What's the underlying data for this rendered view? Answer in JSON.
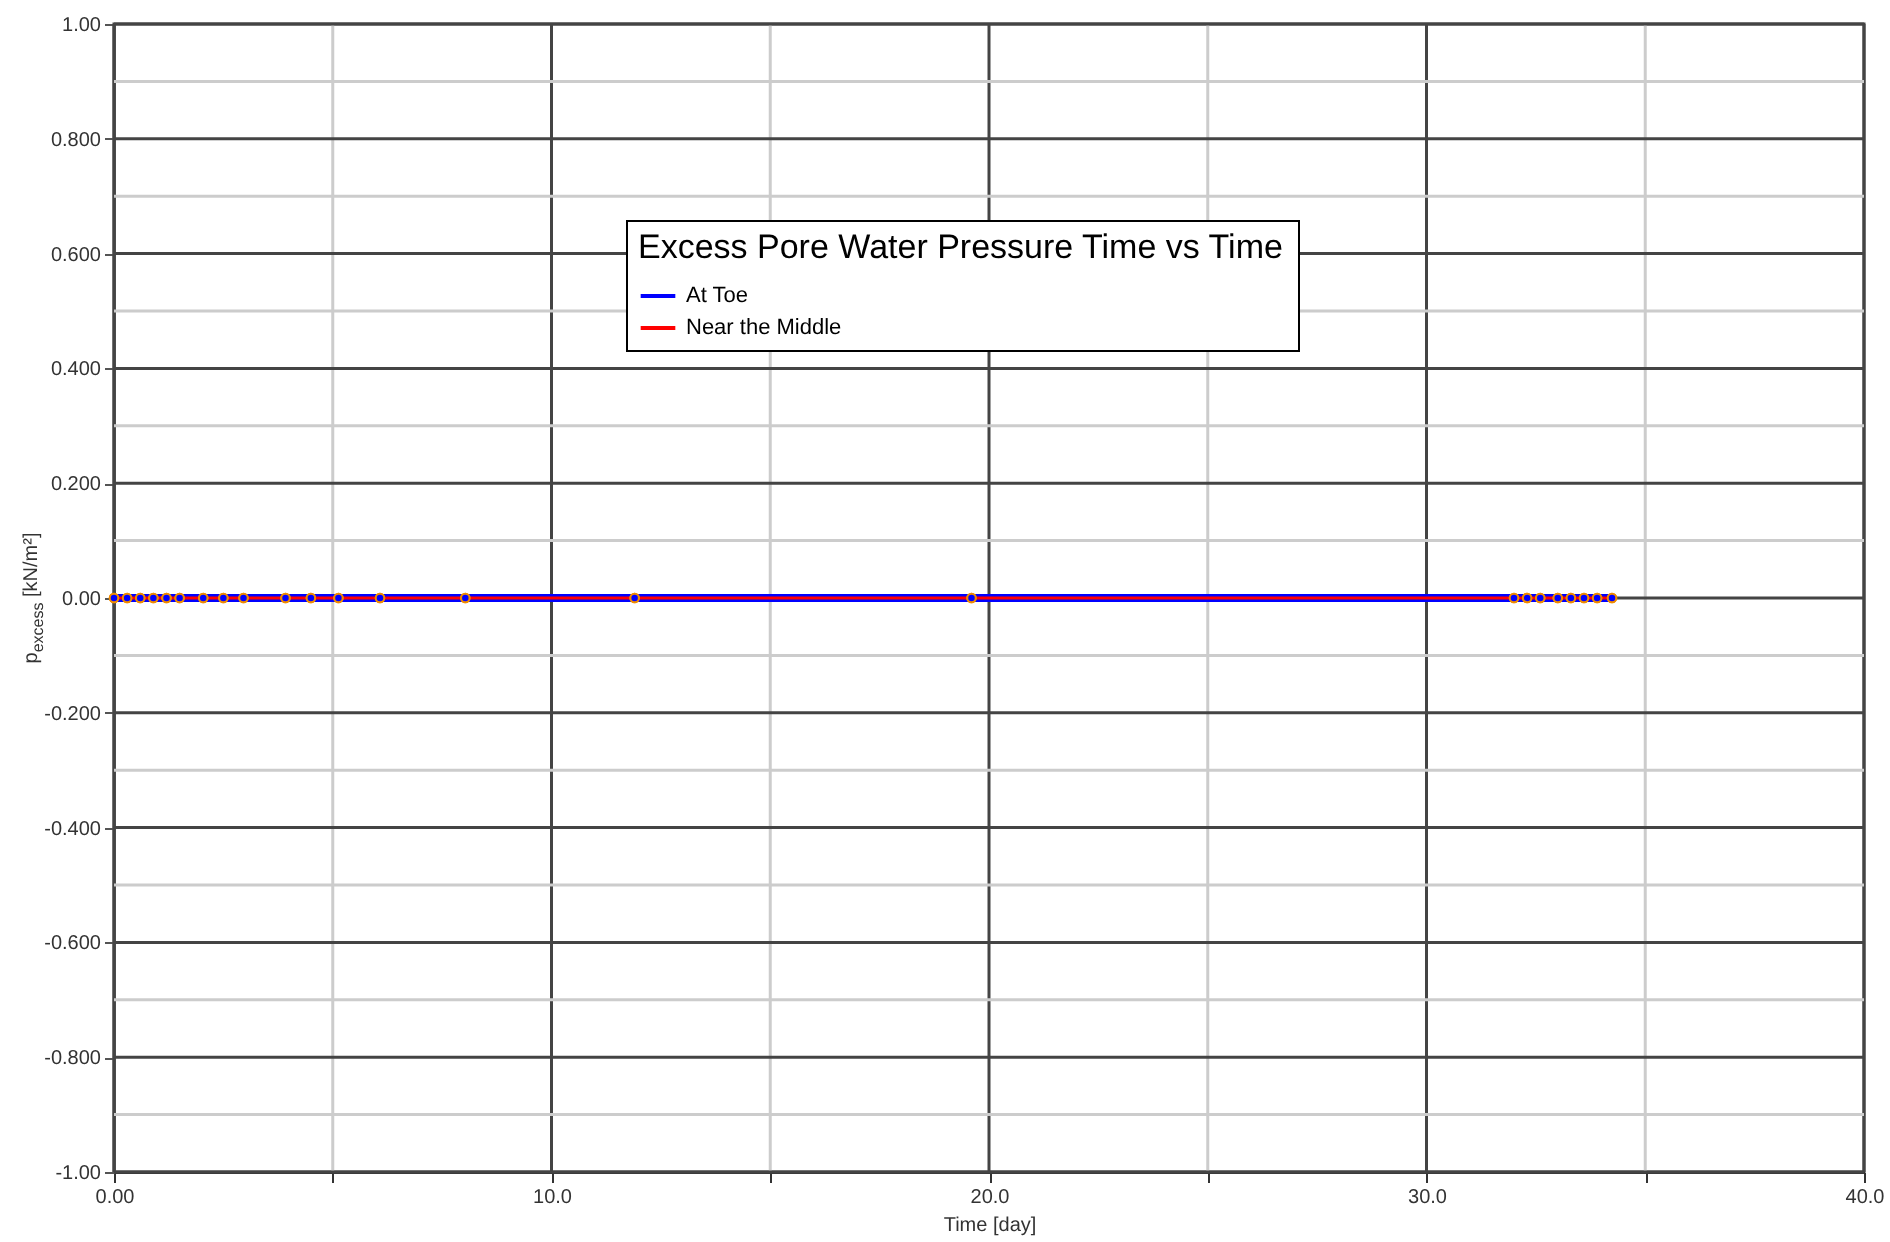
{
  "chart_data": {
    "type": "line",
    "legend_title": "Excess Pore Water Pressure Time vs Time",
    "xlabel": "Time [day]",
    "ylabel": "p$_{excess}$ [kN/m²]",
    "x": [
      0,
      0.3,
      0.6,
      0.9,
      1.2,
      1.5,
      2.04,
      2.5,
      2.96,
      3.92,
      4.5,
      5.13,
      6.08,
      8.03,
      11.9,
      19.6,
      32.0,
      32.3,
      32.6,
      33.0,
      33.3,
      33.6,
      33.9,
      34.24
    ],
    "series": [
      {
        "name": "At Toe",
        "color": "#0000ff",
        "values": [
          0,
          0,
          0,
          0,
          0,
          0,
          0,
          0,
          0,
          0,
          0,
          0,
          0,
          0,
          0,
          0,
          0,
          0,
          0,
          0,
          0,
          0,
          0,
          0
        ]
      },
      {
        "name": "Near the Middle",
        "color": "#ff0000",
        "values": [
          0,
          0,
          0,
          0,
          0,
          0,
          0,
          0,
          0,
          0,
          0,
          0,
          0,
          0,
          0,
          0,
          0,
          0,
          0,
          0,
          0,
          0,
          0,
          0
        ]
      }
    ],
    "xlim": [
      0,
      40
    ],
    "xticks": [
      {
        "value": 0,
        "label": "0.00"
      },
      {
        "value": 5,
        "label": null
      },
      {
        "value": 10,
        "label": "10.0"
      },
      {
        "value": 15,
        "label": null
      },
      {
        "value": 20,
        "label": "20.0"
      },
      {
        "value": 25,
        "label": null
      },
      {
        "value": 30,
        "label": "30.0"
      },
      {
        "value": 35,
        "label": null
      },
      {
        "value": 40,
        "label": "40.0"
      }
    ],
    "ylim": [
      -1,
      1
    ],
    "yticks": [
      {
        "value": -1,
        "label": "-1.00"
      },
      {
        "value": -0.9,
        "label": null
      },
      {
        "value": -0.8,
        "label": "-0.800"
      },
      {
        "value": -0.7,
        "label": null
      },
      {
        "value": -0.6,
        "label": "-0.600"
      },
      {
        "value": -0.5,
        "label": null
      },
      {
        "value": -0.4,
        "label": "-0.400"
      },
      {
        "value": -0.3,
        "label": null
      },
      {
        "value": -0.2,
        "label": "-0.200"
      },
      {
        "value": -0.1,
        "label": null
      },
      {
        "value": 0,
        "label": "0.00"
      },
      {
        "value": 0.1,
        "label": null
      },
      {
        "value": 0.2,
        "label": "0.200"
      },
      {
        "value": 0.3,
        "label": null
      },
      {
        "value": 0.4,
        "label": "0.400"
      },
      {
        "value": 0.5,
        "label": null
      },
      {
        "value": 0.6,
        "label": "0.600"
      },
      {
        "value": 0.7,
        "label": null
      },
      {
        "value": 0.8,
        "label": "0.800"
      },
      {
        "value": 0.9,
        "label": null
      },
      {
        "value": 1,
        "label": "1.00"
      }
    ],
    "grid": true,
    "legend": "top",
    "marker": "circle",
    "line_style": "solid"
  }
}
